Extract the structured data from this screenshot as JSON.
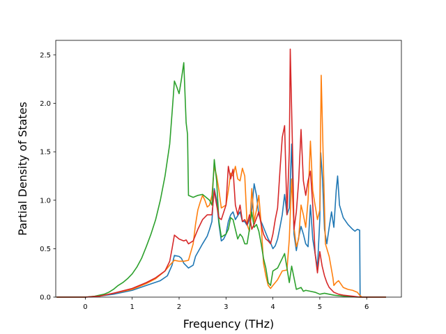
{
  "chart_data": {
    "type": "line",
    "title": "",
    "xlabel": "Frequency (THz)",
    "ylabel": "Partial Density of States",
    "xlim": [
      -0.63,
      6.74
    ],
    "ylim": [
      0,
      2.65
    ],
    "xticks": [
      0,
      1,
      2,
      3,
      4,
      5,
      6
    ],
    "yticks": [
      0.0,
      0.5,
      1.0,
      1.5,
      2.0,
      2.5
    ],
    "xtick_labels": [
      "0",
      "1",
      "2",
      "3",
      "4",
      "5",
      "6"
    ],
    "ytick_labels": [
      "0.0",
      "0.5",
      "1.0",
      "1.5",
      "2.0",
      "2.5"
    ],
    "grid": false,
    "legend": "none",
    "series": [
      {
        "color": "#1f77b4",
        "points": [
          [
            -0.6,
            0
          ],
          [
            0,
            0
          ],
          [
            0.3,
            0.01
          ],
          [
            0.6,
            0.03
          ],
          [
            1.0,
            0.07
          ],
          [
            1.3,
            0.12
          ],
          [
            1.6,
            0.17
          ],
          [
            1.75,
            0.22
          ],
          [
            1.85,
            0.33
          ],
          [
            1.9,
            0.43
          ],
          [
            2.0,
            0.42
          ],
          [
            2.05,
            0.4
          ],
          [
            2.1,
            0.35
          ],
          [
            2.2,
            0.3
          ],
          [
            2.3,
            0.33
          ],
          [
            2.35,
            0.42
          ],
          [
            2.5,
            0.55
          ],
          [
            2.6,
            0.63
          ],
          [
            2.65,
            0.7
          ],
          [
            2.7,
            0.78
          ],
          [
            2.72,
            0.95
          ],
          [
            2.75,
            1.12
          ],
          [
            2.8,
            1.0
          ],
          [
            2.85,
            0.75
          ],
          [
            2.9,
            0.58
          ],
          [
            2.95,
            0.6
          ],
          [
            3.0,
            0.65
          ],
          [
            3.05,
            0.78
          ],
          [
            3.1,
            0.85
          ],
          [
            3.15,
            0.88
          ],
          [
            3.2,
            0.8
          ],
          [
            3.3,
            0.88
          ],
          [
            3.35,
            0.78
          ],
          [
            3.4,
            0.78
          ],
          [
            3.45,
            0.74
          ],
          [
            3.5,
            0.8
          ],
          [
            3.55,
            0.9
          ],
          [
            3.6,
            1.17
          ],
          [
            3.65,
            1.05
          ],
          [
            3.7,
            0.85
          ],
          [
            3.75,
            0.78
          ],
          [
            3.8,
            0.72
          ],
          [
            3.85,
            0.66
          ],
          [
            3.9,
            0.6
          ],
          [
            3.95,
            0.56
          ],
          [
            4.0,
            0.5
          ],
          [
            4.05,
            0.53
          ],
          [
            4.1,
            0.6
          ],
          [
            4.15,
            0.72
          ],
          [
            4.2,
            0.85
          ],
          [
            4.25,
            1.06
          ],
          [
            4.3,
            0.85
          ],
          [
            4.35,
            0.92
          ],
          [
            4.4,
            1.58
          ],
          [
            4.45,
            0.65
          ],
          [
            4.5,
            0.48
          ],
          [
            4.55,
            0.62
          ],
          [
            4.6,
            0.73
          ],
          [
            4.65,
            0.65
          ],
          [
            4.7,
            0.55
          ],
          [
            4.75,
            0.52
          ],
          [
            4.8,
            0.95
          ],
          [
            4.85,
            0.6
          ],
          [
            4.9,
            0.45
          ],
          [
            4.95,
            0.3
          ],
          [
            5.0,
            0.8
          ],
          [
            5.02,
            1.49
          ],
          [
            5.06,
            1.2
          ],
          [
            5.1,
            0.7
          ],
          [
            5.15,
            0.55
          ],
          [
            5.2,
            0.72
          ],
          [
            5.25,
            0.88
          ],
          [
            5.3,
            0.72
          ],
          [
            5.35,
            1.1
          ],
          [
            5.38,
            1.25
          ],
          [
            5.42,
            0.95
          ],
          [
            5.5,
            0.82
          ],
          [
            5.6,
            0.75
          ],
          [
            5.7,
            0.7
          ],
          [
            5.75,
            0.68
          ],
          [
            5.8,
            0.7
          ],
          [
            5.85,
            0.69
          ],
          [
            5.86,
            0.0
          ],
          [
            6.4,
            0.0
          ]
        ]
      },
      {
        "color": "#ff7f0e",
        "points": [
          [
            -0.6,
            0
          ],
          [
            0,
            0
          ],
          [
            0.3,
            0.01
          ],
          [
            0.6,
            0.04
          ],
          [
            1.0,
            0.08
          ],
          [
            1.3,
            0.14
          ],
          [
            1.5,
            0.19
          ],
          [
            1.7,
            0.27
          ],
          [
            1.8,
            0.33
          ],
          [
            1.9,
            0.38
          ],
          [
            2.0,
            0.37
          ],
          [
            2.1,
            0.37
          ],
          [
            2.2,
            0.38
          ],
          [
            2.3,
            0.55
          ],
          [
            2.35,
            0.75
          ],
          [
            2.4,
            0.9
          ],
          [
            2.45,
            0.98
          ],
          [
            2.5,
            1.05
          ],
          [
            2.55,
            1.0
          ],
          [
            2.6,
            0.93
          ],
          [
            2.65,
            0.95
          ],
          [
            2.7,
            1.05
          ],
          [
            2.75,
            1.35
          ],
          [
            2.8,
            1.25
          ],
          [
            2.85,
            1.1
          ],
          [
            2.9,
            0.92
          ],
          [
            3.0,
            0.95
          ],
          [
            3.05,
            1.1
          ],
          [
            3.1,
            1.28
          ],
          [
            3.15,
            1.25
          ],
          [
            3.2,
            1.35
          ],
          [
            3.25,
            1.22
          ],
          [
            3.3,
            1.2
          ],
          [
            3.35,
            1.33
          ],
          [
            3.4,
            1.25
          ],
          [
            3.45,
            0.75
          ],
          [
            3.5,
            0.68
          ],
          [
            3.55,
            1.12
          ],
          [
            3.6,
            0.78
          ],
          [
            3.65,
            0.9
          ],
          [
            3.7,
            1.05
          ],
          [
            3.75,
            0.75
          ],
          [
            3.8,
            0.35
          ],
          [
            3.85,
            0.22
          ],
          [
            3.9,
            0.12
          ],
          [
            3.95,
            0.09
          ],
          [
            4.0,
            0.12
          ],
          [
            4.1,
            0.18
          ],
          [
            4.2,
            0.27
          ],
          [
            4.3,
            0.28
          ],
          [
            4.35,
            0.6
          ],
          [
            4.4,
            1.22
          ],
          [
            4.45,
            0.72
          ],
          [
            4.5,
            0.52
          ],
          [
            4.55,
            0.6
          ],
          [
            4.6,
            0.95
          ],
          [
            4.65,
            0.85
          ],
          [
            4.7,
            0.72
          ],
          [
            4.75,
            1.0
          ],
          [
            4.8,
            1.61
          ],
          [
            4.85,
            1.1
          ],
          [
            4.9,
            0.95
          ],
          [
            4.95,
            0.8
          ],
          [
            5.0,
            0.9
          ],
          [
            5.03,
            2.29
          ],
          [
            5.08,
            1.3
          ],
          [
            5.12,
            0.55
          ],
          [
            5.2,
            0.42
          ],
          [
            5.28,
            0.2
          ],
          [
            5.3,
            0.12
          ],
          [
            5.35,
            0.15
          ],
          [
            5.4,
            0.17
          ],
          [
            5.5,
            0.1
          ],
          [
            5.6,
            0.08
          ],
          [
            5.7,
            0.07
          ],
          [
            5.8,
            0.05
          ],
          [
            5.85,
            0.02
          ],
          [
            5.9,
            0.0
          ],
          [
            6.4,
            0.0
          ]
        ]
      },
      {
        "color": "#2ca02c",
        "points": [
          [
            -0.6,
            0
          ],
          [
            0,
            0
          ],
          [
            0.2,
            0.01
          ],
          [
            0.4,
            0.03
          ],
          [
            0.5,
            0.05
          ],
          [
            0.6,
            0.08
          ],
          [
            0.7,
            0.12
          ],
          [
            0.8,
            0.15
          ],
          [
            0.9,
            0.19
          ],
          [
            1.0,
            0.24
          ],
          [
            1.1,
            0.31
          ],
          [
            1.2,
            0.4
          ],
          [
            1.3,
            0.52
          ],
          [
            1.4,
            0.65
          ],
          [
            1.5,
            0.8
          ],
          [
            1.6,
            1.0
          ],
          [
            1.7,
            1.25
          ],
          [
            1.8,
            1.58
          ],
          [
            1.85,
            1.9
          ],
          [
            1.9,
            2.23
          ],
          [
            1.95,
            2.17
          ],
          [
            2.0,
            2.1
          ],
          [
            2.05,
            2.25
          ],
          [
            2.1,
            2.42
          ],
          [
            2.15,
            1.8
          ],
          [
            2.18,
            1.68
          ],
          [
            2.2,
            1.05
          ],
          [
            2.3,
            1.03
          ],
          [
            2.4,
            1.05
          ],
          [
            2.5,
            1.06
          ],
          [
            2.6,
            1.02
          ],
          [
            2.65,
            1.0
          ],
          [
            2.7,
            0.95
          ],
          [
            2.75,
            1.42
          ],
          [
            2.8,
            1.2
          ],
          [
            2.85,
            0.78
          ],
          [
            2.9,
            0.62
          ],
          [
            3.0,
            0.65
          ],
          [
            3.05,
            0.7
          ],
          [
            3.1,
            0.82
          ],
          [
            3.15,
            0.8
          ],
          [
            3.2,
            0.7
          ],
          [
            3.25,
            0.6
          ],
          [
            3.3,
            0.65
          ],
          [
            3.35,
            0.62
          ],
          [
            3.4,
            0.55
          ],
          [
            3.45,
            0.55
          ],
          [
            3.5,
            0.7
          ],
          [
            3.55,
            0.88
          ],
          [
            3.6,
            0.72
          ],
          [
            3.65,
            0.75
          ],
          [
            3.7,
            0.68
          ],
          [
            3.75,
            0.55
          ],
          [
            3.8,
            0.4
          ],
          [
            3.85,
            0.3
          ],
          [
            3.9,
            0.15
          ],
          [
            3.95,
            0.12
          ],
          [
            4.0,
            0.27
          ],
          [
            4.1,
            0.3
          ],
          [
            4.2,
            0.4
          ],
          [
            4.25,
            0.45
          ],
          [
            4.3,
            0.3
          ],
          [
            4.35,
            0.15
          ],
          [
            4.4,
            0.32
          ],
          [
            4.45,
            0.2
          ],
          [
            4.5,
            0.08
          ],
          [
            4.6,
            0.1
          ],
          [
            4.65,
            0.06
          ],
          [
            4.7,
            0.07
          ],
          [
            4.8,
            0.06
          ],
          [
            4.9,
            0.05
          ],
          [
            5.0,
            0.03
          ],
          [
            5.1,
            0.04
          ],
          [
            5.2,
            0.03
          ],
          [
            5.3,
            0.02
          ],
          [
            5.5,
            0.01
          ],
          [
            5.8,
            0.0
          ],
          [
            6.4,
            0.0
          ]
        ]
      },
      {
        "color": "#d62728",
        "points": [
          [
            -0.6,
            0
          ],
          [
            0,
            0
          ],
          [
            0.3,
            0.01
          ],
          [
            0.6,
            0.04
          ],
          [
            1.0,
            0.09
          ],
          [
            1.3,
            0.15
          ],
          [
            1.5,
            0.2
          ],
          [
            1.7,
            0.27
          ],
          [
            1.8,
            0.37
          ],
          [
            1.85,
            0.5
          ],
          [
            1.9,
            0.64
          ],
          [
            2.0,
            0.6
          ],
          [
            2.1,
            0.58
          ],
          [
            2.15,
            0.59
          ],
          [
            2.2,
            0.55
          ],
          [
            2.3,
            0.58
          ],
          [
            2.4,
            0.7
          ],
          [
            2.5,
            0.8
          ],
          [
            2.6,
            0.85
          ],
          [
            2.7,
            0.85
          ],
          [
            2.75,
            1.1
          ],
          [
            2.8,
            0.95
          ],
          [
            2.85,
            0.82
          ],
          [
            2.9,
            0.8
          ],
          [
            3.0,
            0.95
          ],
          [
            3.05,
            1.35
          ],
          [
            3.1,
            1.22
          ],
          [
            3.15,
            1.32
          ],
          [
            3.2,
            0.95
          ],
          [
            3.25,
            0.85
          ],
          [
            3.3,
            0.95
          ],
          [
            3.35,
            0.78
          ],
          [
            3.4,
            0.8
          ],
          [
            3.45,
            0.75
          ],
          [
            3.5,
            0.85
          ],
          [
            3.55,
            0.7
          ],
          [
            3.6,
            0.75
          ],
          [
            3.7,
            0.88
          ],
          [
            3.75,
            0.75
          ],
          [
            3.8,
            0.65
          ],
          [
            3.85,
            0.6
          ],
          [
            3.9,
            0.58
          ],
          [
            3.95,
            0.55
          ],
          [
            4.0,
            0.65
          ],
          [
            4.05,
            0.8
          ],
          [
            4.1,
            0.92
          ],
          [
            4.15,
            1.3
          ],
          [
            4.2,
            1.65
          ],
          [
            4.25,
            1.77
          ],
          [
            4.3,
            0.85
          ],
          [
            4.35,
            1.5
          ],
          [
            4.37,
            2.56
          ],
          [
            4.42,
            1.5
          ],
          [
            4.45,
            0.7
          ],
          [
            4.5,
            0.88
          ],
          [
            4.55,
            1.2
          ],
          [
            4.6,
            1.73
          ],
          [
            4.65,
            1.2
          ],
          [
            4.7,
            1.05
          ],
          [
            4.75,
            1.2
          ],
          [
            4.8,
            1.3
          ],
          [
            4.85,
            0.95
          ],
          [
            4.9,
            0.45
          ],
          [
            4.95,
            0.25
          ],
          [
            5.0,
            0.47
          ],
          [
            5.05,
            0.32
          ],
          [
            5.1,
            0.22
          ],
          [
            5.15,
            0.15
          ],
          [
            5.2,
            0.1
          ],
          [
            5.3,
            0.05
          ],
          [
            5.4,
            0.03
          ],
          [
            5.5,
            0.02
          ],
          [
            5.7,
            0.01
          ],
          [
            5.85,
            0.0
          ],
          [
            6.4,
            0.0
          ]
        ]
      }
    ]
  }
}
